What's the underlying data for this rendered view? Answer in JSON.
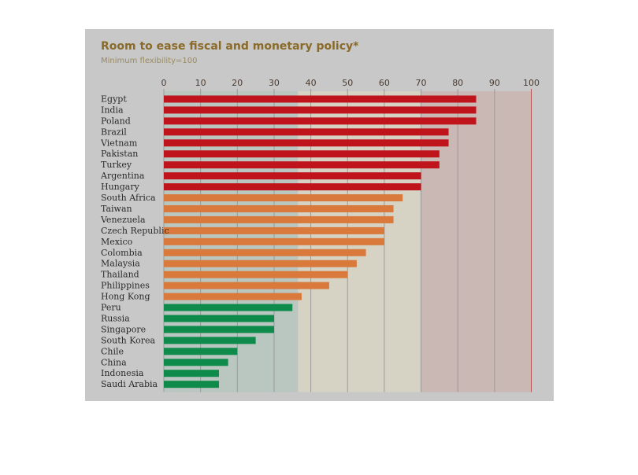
{
  "chart_data": {
    "type": "bar",
    "orientation": "horizontal",
    "title": "Room to ease fiscal and monetary policy*",
    "subtitle": "Minimum flexibility=100",
    "xlim": [
      0,
      100
    ],
    "xticks": [
      0,
      10,
      20,
      30,
      40,
      50,
      60,
      70,
      80,
      90,
      100
    ],
    "grid": true,
    "categories": [
      "Egypt",
      "India",
      "Poland",
      "Brazil",
      "Vietnam",
      "Pakistan",
      "Turkey",
      "Argentina",
      "Hungary",
      "South Africa",
      "Taiwan",
      "Venezuela",
      "Czech Republic",
      "Mexico",
      "Colombia",
      "Malaysia",
      "Thailand",
      "Philippines",
      "Hong Kong",
      "Peru",
      "Russia",
      "Singapore",
      "South Korea",
      "Chile",
      "China",
      "Indonesia",
      "Saudi Arabia"
    ],
    "values": [
      85,
      85,
      85,
      77.5,
      77.5,
      75,
      75,
      70,
      70,
      65,
      62.5,
      62.5,
      60,
      60,
      55,
      52.5,
      50,
      45,
      37.5,
      35,
      30,
      30,
      25,
      20,
      17.5,
      15,
      15
    ],
    "groups": [
      0,
      0,
      0,
      0,
      0,
      0,
      0,
      0,
      0,
      1,
      1,
      1,
      1,
      1,
      1,
      1,
      1,
      1,
      1,
      2,
      2,
      2,
      2,
      2,
      2,
      2,
      2
    ],
    "colors": {
      "high": "#c0141c",
      "medium": "#d97a3c",
      "low": "#0e8a4a",
      "band_high": "#c9b8b4",
      "band_medium": "#d6d2c4",
      "band_low": "#b9c7c0",
      "grid": "#9a9a9a",
      "axis_100": "#b05050",
      "panel": "#c8c8c8"
    },
    "bands": [
      [
        0,
        36.5,
        "band_low"
      ],
      [
        36.5,
        70,
        "band_medium"
      ],
      [
        70,
        100,
        "band_high"
      ]
    ]
  }
}
